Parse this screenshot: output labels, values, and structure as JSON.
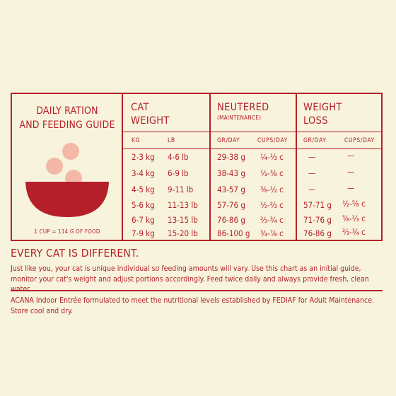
{
  "guide": {
    "title_line1": "DAILY RATION",
    "title_line2": "AND FEEDING GUIDE",
    "cup_note": "1 CUP = 114 G OF FOOD"
  },
  "columns": {
    "cat_weight": {
      "title_line1": "CAT",
      "title_line2": "WEIGHT",
      "sub_kg": "KG",
      "sub_lb": "LB"
    },
    "neutered": {
      "title": "NEUTERED",
      "subtitle": "(MAINTENANCE)",
      "sub_gr": "GR/DAY",
      "sub_cups": "CUPS/DAY"
    },
    "weight_loss": {
      "title_line1": "WEIGHT",
      "title_line2": "LOSS",
      "sub_gr": "GR/DAY",
      "sub_cups": "CUPS/DAY"
    }
  },
  "rows": [
    {
      "kg": "2-3 kg",
      "lb": "4-6 lb",
      "n_gr": "29-38 g",
      "n_cups": "¼-⅓ c",
      "w_gr": "—",
      "w_cups": "—"
    },
    {
      "kg": "3-4 kg",
      "lb": "6-9 lb",
      "n_gr": "38-43 g",
      "n_cups": "⅓-⅜ c",
      "w_gr": "—",
      "w_cups": "—"
    },
    {
      "kg": "4-5 kg",
      "lb": "9-11 lb",
      "n_gr": "43-57 g",
      "n_cups": "⅜-½ c",
      "w_gr": "—",
      "w_cups": "—"
    },
    {
      "kg": "5-6 kg",
      "lb": "11-13 lb",
      "n_gr": "57-76 g",
      "n_cups": "½-⅔ c",
      "w_gr": "57-71 g",
      "w_cups": "½-⅝ c"
    },
    {
      "kg": "6-7 kg",
      "lb": "13-15 lb",
      "n_gr": "76-86 g",
      "n_cups": "⅔-¾ c",
      "w_gr": "71-76 g",
      "w_cups": "⅝-⅔ c"
    },
    {
      "kg": "7-9 kg",
      "lb": "15-20 lb",
      "n_gr": "86-100 g",
      "n_cups": "¾-⅞ c",
      "w_gr": "76-86 g",
      "w_cups": "⅔-¾ c"
    }
  ],
  "notice": {
    "heading": "EVERY CAT IS DIFFERENT.",
    "body": "Just like you, your cat is unique individual so feeding amounts will vary. Use this chart as an initial guide, monitor your cat's weight and adjust portions accordingly. Feed twice daily and always provide fresh, clean water.",
    "footer": "ACANA Indoor Entrée formulated to meet the nutritional levels established by FEDIAF  for Adult Maintenance. Store cool and dry."
  },
  "colors": {
    "accent": "#b5202a",
    "background": "#f7f3dc",
    "kibble": "#f4b9a6"
  }
}
